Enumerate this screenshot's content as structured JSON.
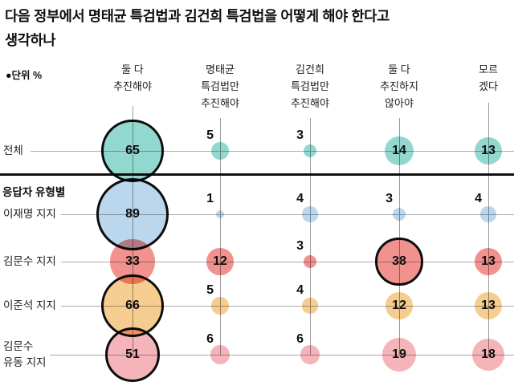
{
  "title": {
    "line1": "다음 정부에서 명태균 특검법과 김건희 특검법을 어떻게 해야 한다고",
    "line2": "생각하나"
  },
  "unit_label": "●단위 %",
  "chart_data": {
    "type": "scatter",
    "subtype": "bubble-matrix",
    "title": "다음 정부에서 명태균 특검법과 김건희 특검법을 어떻게 해야 한다고 생각하나",
    "unit": "%",
    "categories": [
      "둘 다 추진해야",
      "명태균 특검법만 추진해야",
      "김건희 특검법만 추진해야",
      "둘 다 추진하지 않아야",
      "모르겠다"
    ],
    "category_lines": [
      [
        "둘 다",
        "추진해야"
      ],
      [
        "명태균",
        "특검법만",
        "추진해야"
      ],
      [
        "김건희",
        "특검법만",
        "추진해야"
      ],
      [
        "둘 다",
        "추진하지",
        "않아야"
      ],
      [
        "모르",
        "겠다"
      ]
    ],
    "group_label": "응답자 유형별",
    "group_separator_after_row_index": 0,
    "rows": [
      {
        "label": "전체",
        "label_lines": [
          "전체"
        ],
        "color": "#93d8cf",
        "values": [
          65,
          5,
          3,
          14,
          13
        ]
      },
      {
        "label": "이재명 지지",
        "label_lines": [
          "이재명 지지"
        ],
        "color": "#bbd7ee",
        "values": [
          89,
          1,
          4,
          3,
          4
        ]
      },
      {
        "label": "김문수 지지",
        "label_lines": [
          "김문수 지지"
        ],
        "color": "#f1928e",
        "values": [
          33,
          12,
          3,
          38,
          13
        ]
      },
      {
        "label": "이준석 지지",
        "label_lines": [
          "이준석 지지"
        ],
        "color": "#f6cd90",
        "values": [
          66,
          5,
          4,
          12,
          13
        ]
      },
      {
        "label": "김문수 유동 지지",
        "label_lines": [
          "김문수",
          "유동 지지"
        ],
        "color": "#f4b4b9",
        "values": [
          51,
          6,
          6,
          19,
          18
        ]
      }
    ],
    "styling": {
      "bubble_sizing": "radius proportional to sqrt(value)",
      "row_max_outlined": true,
      "outline_color": "#0c0c0c",
      "label_inside_min_value": 12,
      "grid": true,
      "gridline_color": "#9b9b9b",
      "separator_color": "#101010"
    }
  }
}
